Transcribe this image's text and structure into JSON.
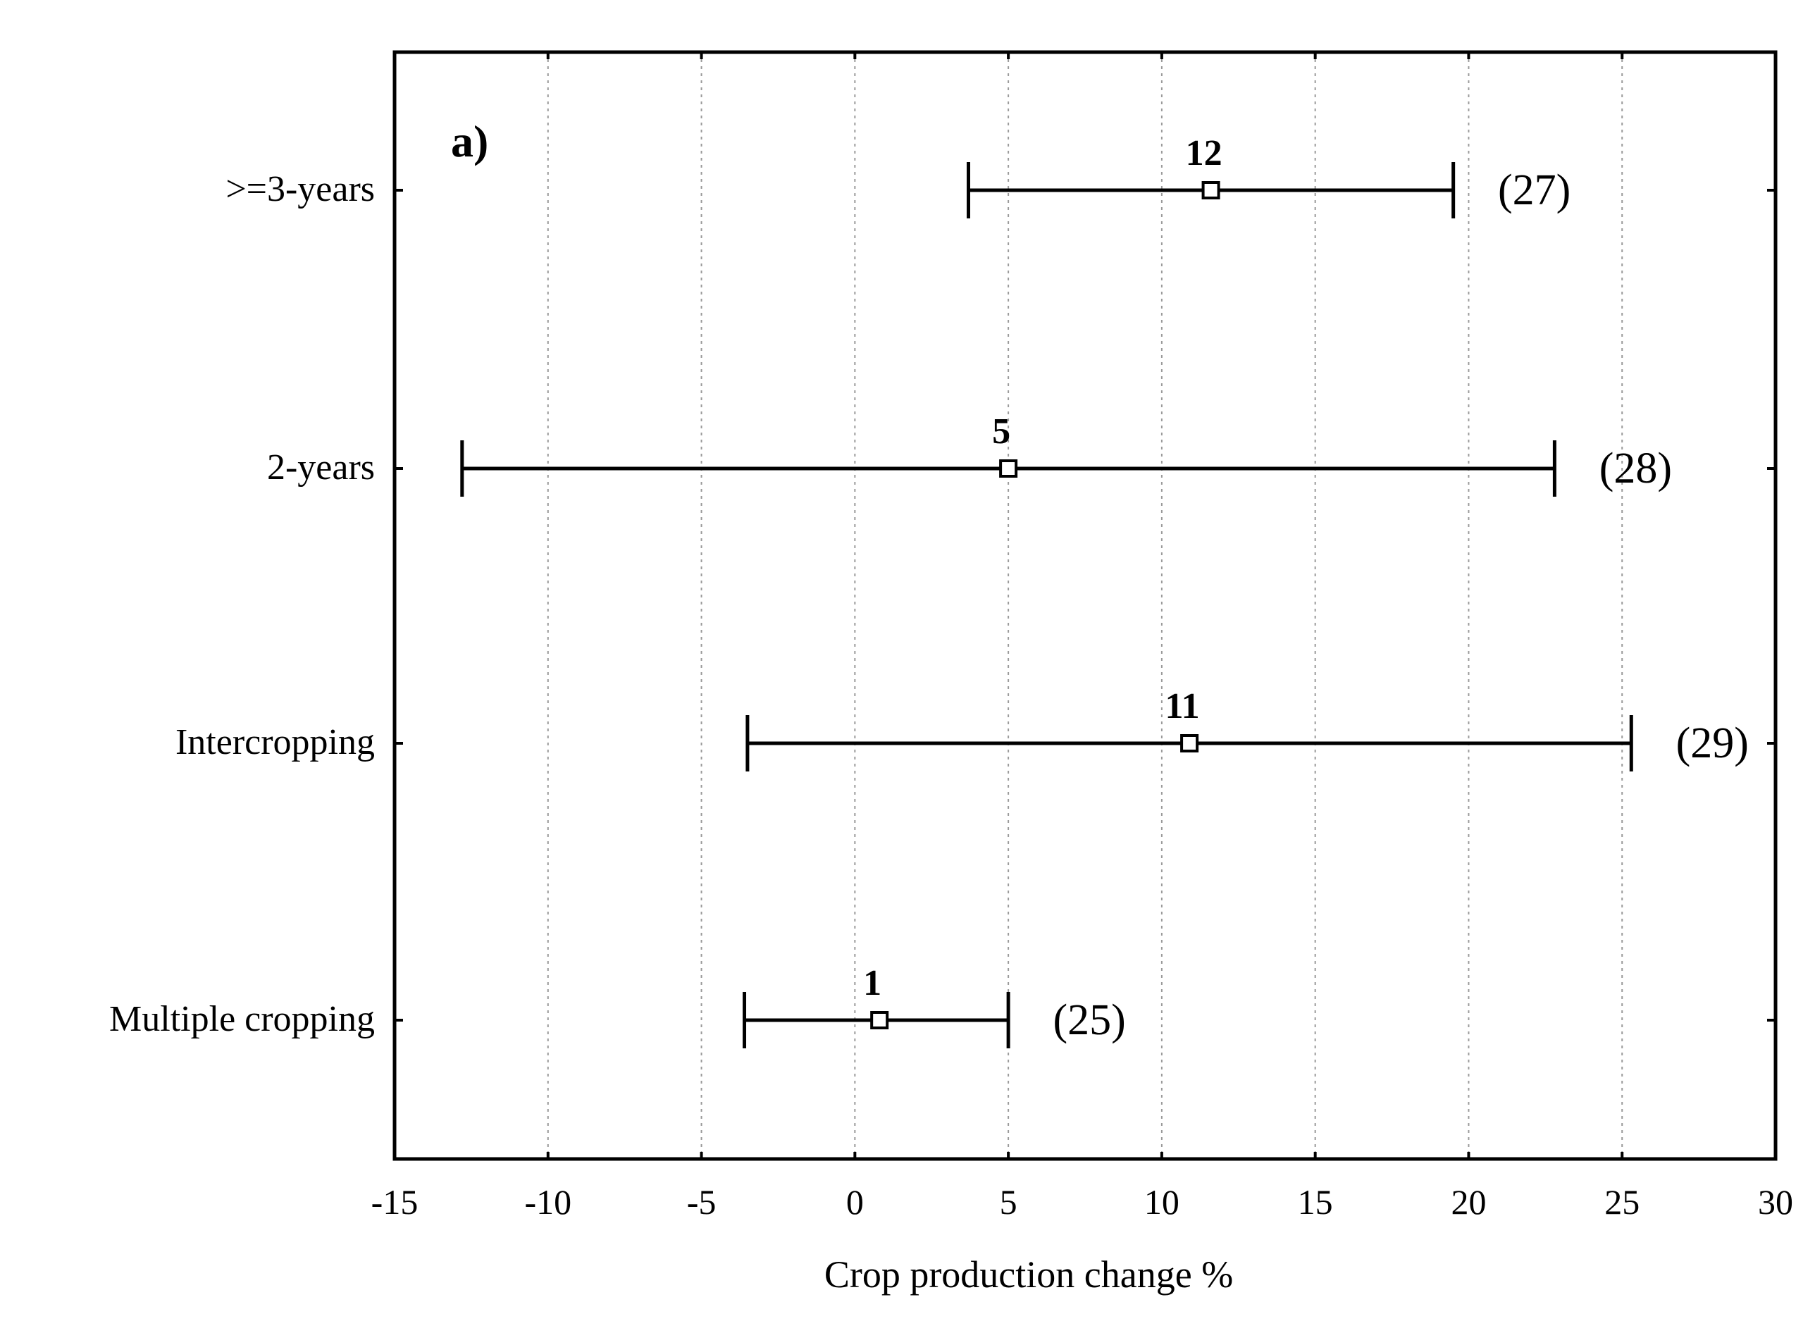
{
  "chart_data": {
    "type": "forest",
    "panel_label": "a)",
    "xlabel": "Crop production change %",
    "xlim": [
      -15,
      30
    ],
    "xticks": [
      -15,
      -10,
      -5,
      0,
      5,
      10,
      15,
      20,
      25,
      30
    ],
    "xtick_labels": [
      "-15",
      "-10",
      "-5",
      "0",
      "5",
      "10",
      "15",
      "20",
      "25",
      "30"
    ],
    "grid": "vertical-dotted",
    "series": [
      {
        "category": ">=3-years",
        "estimate": 11.6,
        "lower": 3.7,
        "upper": 19.5,
        "estimate_label": "12",
        "n_label": "(27)"
      },
      {
        "category": "2-years",
        "estimate": 5.0,
        "lower": -12.8,
        "upper": 22.8,
        "estimate_label": "5",
        "n_label": "(28)"
      },
      {
        "category": "Intercropping",
        "estimate": 10.9,
        "lower": -3.5,
        "upper": 25.3,
        "estimate_label": "11",
        "n_label": "(29)"
      },
      {
        "category": "Multiple cropping",
        "estimate": 0.8,
        "lower": -3.6,
        "upper": 5.0,
        "estimate_label": "1",
        "n_label": "(25)"
      }
    ]
  }
}
